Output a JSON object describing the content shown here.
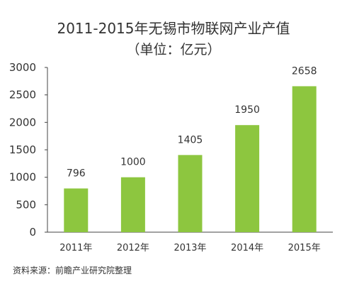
{
  "chart_data": {
    "type": "bar",
    "title": "2011-2015年无锡市物联网产业产值",
    "subtitle": "（单位：亿元）",
    "categories": [
      "2011年",
      "2012年",
      "2013年",
      "2014年",
      "2015年"
    ],
    "values": [
      796,
      1000,
      1405,
      1950,
      2658
    ],
    "data_labels": [
      "796",
      "1000",
      "1405",
      "1950",
      "2658"
    ],
    "yticks": [
      0,
      500,
      1000,
      1500,
      2000,
      2500,
      3000
    ],
    "ylim": [
      0,
      3000
    ],
    "grid": false,
    "bar_color": "#8dc63f"
  },
  "source": "资料来源：前瞻产业研究院整理"
}
